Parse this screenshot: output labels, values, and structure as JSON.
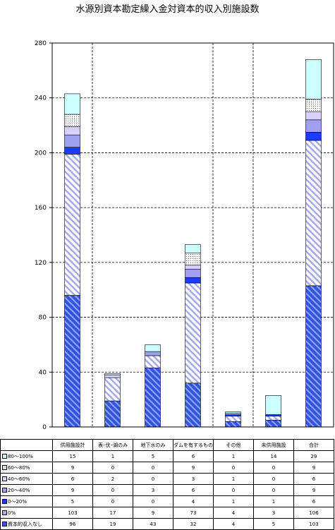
{
  "chart_data": {
    "type": "bar",
    "stacked": true,
    "title": "水源別資本勘定繰入金対資本的収入別施設数",
    "categories": [
      "供用施設計",
      "表･伏･湖のみ",
      "地下水のみ",
      "ダムを有するもの",
      "その他",
      "未供用施設",
      "合計"
    ],
    "ylim": [
      0,
      280
    ],
    "yticks": [
      0,
      40,
      80,
      120,
      160,
      200,
      240,
      280
    ],
    "grid": "dashed",
    "legend": "table-below",
    "series": [
      {
        "name": "資本的収入なし",
        "values": [
          96,
          19,
          43,
          32,
          4,
          5,
          103
        ],
        "color": "#3355dd",
        "pattern": "hatch-dark"
      },
      {
        "name": "0%",
        "values": [
          103,
          17,
          9,
          73,
          4,
          3,
          106
        ],
        "color": "#aaaaee",
        "pattern": "hatch-light"
      },
      {
        "name": "0～20%",
        "values": [
          5,
          0,
          0,
          4,
          1,
          1,
          6
        ],
        "color": "#1a3cff",
        "pattern": "solid"
      },
      {
        "name": "20～40%",
        "values": [
          9,
          0,
          3,
          6,
          0,
          0,
          9
        ],
        "color": "#a0a0f0",
        "pattern": "solid"
      },
      {
        "name": "40～60%",
        "values": [
          6,
          2,
          0,
          3,
          1,
          0,
          6
        ],
        "color": "#d8d0ff",
        "pattern": "solid"
      },
      {
        "name": "60～80%",
        "values": [
          9,
          0,
          0,
          9,
          0,
          0,
          9
        ],
        "color": "#ffffff",
        "pattern": "dots"
      },
      {
        "name": "80～100%",
        "values": [
          15,
          1,
          5,
          6,
          1,
          14,
          29
        ],
        "color": "#ccffff",
        "pattern": "solid"
      }
    ]
  }
}
